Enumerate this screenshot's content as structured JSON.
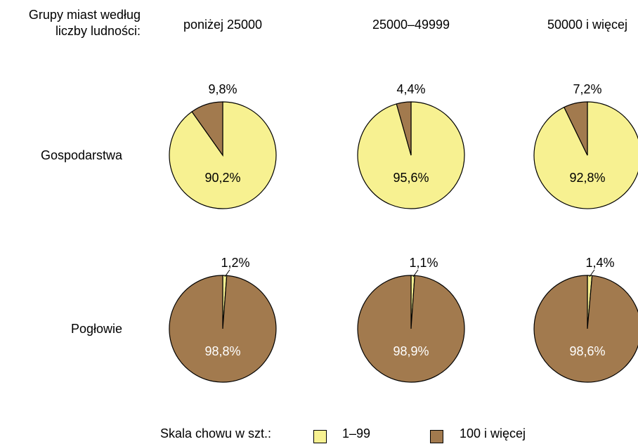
{
  "header": {
    "group_label_line1": "Grupy miast według",
    "group_label_line2": "liczby ludności:"
  },
  "columns": [
    "poniżej 25000",
    "25000–49999",
    "50000 i więcej"
  ],
  "rows": [
    "Gospodarstwa",
    "Pogłowie"
  ],
  "colors": {
    "small": "#f7f191",
    "large": "#a27a4e",
    "stroke": "#000000"
  },
  "legend": {
    "title": "Skala chowu w szt.:",
    "items": [
      {
        "label": "1–99",
        "color": "#f7f191"
      },
      {
        "label": "100 i więcej",
        "color": "#a27a4e"
      }
    ]
  },
  "chart_data": [
    {
      "type": "pie",
      "row": "Gospodarstwa",
      "column": "poniżej 25000",
      "labels": [
        "1–99",
        "100 i więcej"
      ],
      "values": [
        90.2,
        9.8
      ],
      "value_labels": [
        "90,2%",
        "9,8%"
      ]
    },
    {
      "type": "pie",
      "row": "Gospodarstwa",
      "column": "25000–49999",
      "labels": [
        "1–99",
        "100 i więcej"
      ],
      "values": [
        95.6,
        4.4
      ],
      "value_labels": [
        "95,6%",
        "4,4%"
      ]
    },
    {
      "type": "pie",
      "row": "Gospodarstwa",
      "column": "50000 i więcej",
      "labels": [
        "1–99",
        "100 i więcej"
      ],
      "values": [
        92.8,
        7.2
      ],
      "value_labels": [
        "92,8%",
        "7,2%"
      ]
    },
    {
      "type": "pie",
      "row": "Pogłowie",
      "column": "poniżej 25000",
      "labels": [
        "1–99",
        "100 i więcej"
      ],
      "values": [
        1.2,
        98.8
      ],
      "value_labels": [
        "1,2%",
        "98,8%"
      ]
    },
    {
      "type": "pie",
      "row": "Pogłowie",
      "column": "25000–49999",
      "labels": [
        "1–99",
        "100 i więcej"
      ],
      "values": [
        1.1,
        98.9
      ],
      "value_labels": [
        "1,1%",
        "98,9%"
      ]
    },
    {
      "type": "pie",
      "row": "Pogłowie",
      "column": "50000 i więcej",
      "labels": [
        "1–99",
        "100 i więcej"
      ],
      "values": [
        1.4,
        98.6
      ],
      "value_labels": [
        "1,4%",
        "98,6%"
      ]
    }
  ]
}
